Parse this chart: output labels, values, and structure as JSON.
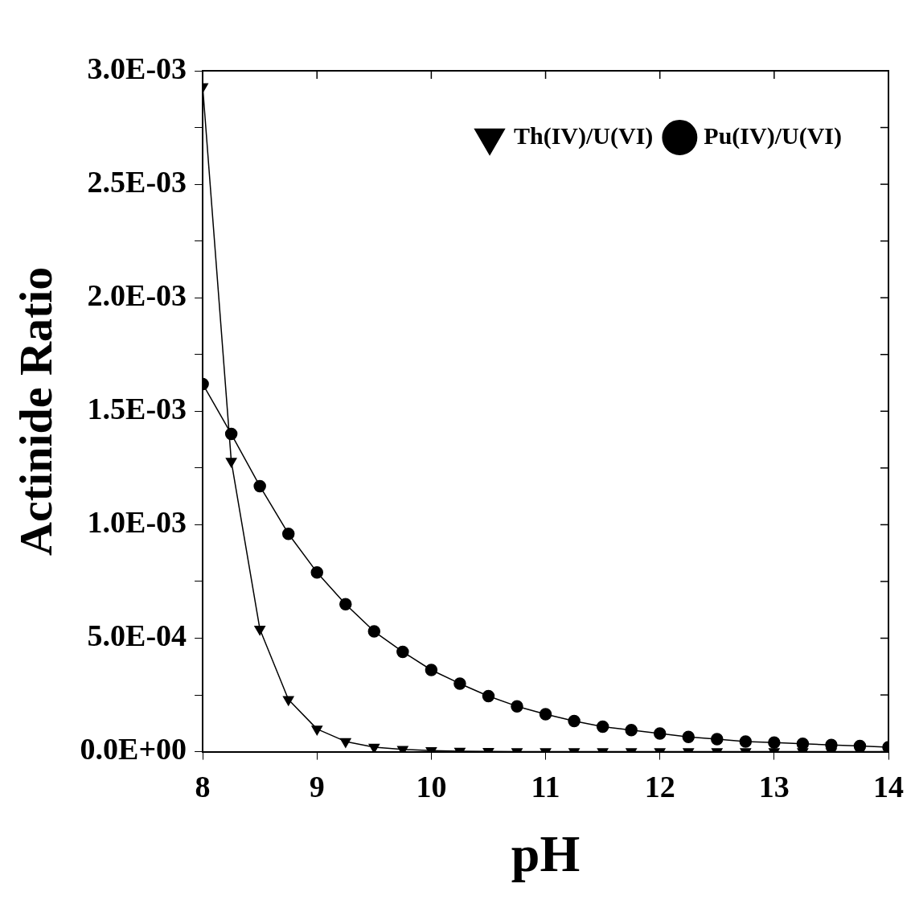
{
  "chart_data": {
    "type": "line",
    "xlabel": "pH",
    "ylabel": "Actinide Ratio",
    "x": [
      8,
      8.25,
      8.5,
      8.75,
      9,
      9.25,
      9.5,
      9.75,
      10,
      10.25,
      10.5,
      10.75,
      11,
      11.25,
      11.5,
      11.75,
      12,
      12.25,
      12.5,
      12.75,
      13,
      13.25,
      13.5,
      13.75,
      14
    ],
    "series": [
      {
        "name": "Th(IV)/U(VI)",
        "color": "#000000",
        "marker": "triangle",
        "values": [
          0.00293,
          0.00128,
          0.00054,
          0.00023,
          0.0001,
          4.5e-05,
          2e-05,
          1e-05,
          5e-06,
          2e-06,
          1e-06,
          0,
          0,
          0,
          0,
          0,
          0,
          0,
          0,
          0,
          0,
          0,
          0,
          0,
          0
        ]
      },
      {
        "name": "Pu(IV)/U(VI)",
        "color": "#000000",
        "marker": "circle",
        "values": [
          0.00162,
          0.0014,
          0.00117,
          0.00096,
          0.00079,
          0.00065,
          0.00053,
          0.00044,
          0.00036,
          0.0003,
          0.000245,
          0.0002,
          0.000165,
          0.000135,
          0.00011,
          9.5e-05,
          8e-05,
          6.5e-05,
          5.5e-05,
          4.5e-05,
          4e-05,
          3.5e-05,
          3e-05,
          2.5e-05,
          2e-05
        ]
      }
    ],
    "xlim": [
      8,
      14
    ],
    "xticks": [
      8,
      9,
      10,
      11,
      12,
      13,
      14
    ],
    "ylim": [
      0,
      0.003
    ],
    "yticks": [
      {
        "value": 0,
        "label": "0.0E+00"
      },
      {
        "value": 0.00025,
        "label": null
      },
      {
        "value": 0.0005,
        "label": "5.0E-04"
      },
      {
        "value": 0.00075,
        "label": null
      },
      {
        "value": 0.001,
        "label": "1.0E-03"
      },
      {
        "value": 0.00125,
        "label": null
      },
      {
        "value": 0.0015,
        "label": "1.5E-03"
      },
      {
        "value": 0.00175,
        "label": null
      },
      {
        "value": 0.002,
        "label": "2.0E-03"
      },
      {
        "value": 0.00225,
        "label": null
      },
      {
        "value": 0.0025,
        "label": "2.5E-03"
      },
      {
        "value": 0.00275,
        "label": null
      },
      {
        "value": 0.003,
        "label": "3.0E-03"
      }
    ],
    "grid": false,
    "legend": "top right",
    "line_style": "solid"
  }
}
